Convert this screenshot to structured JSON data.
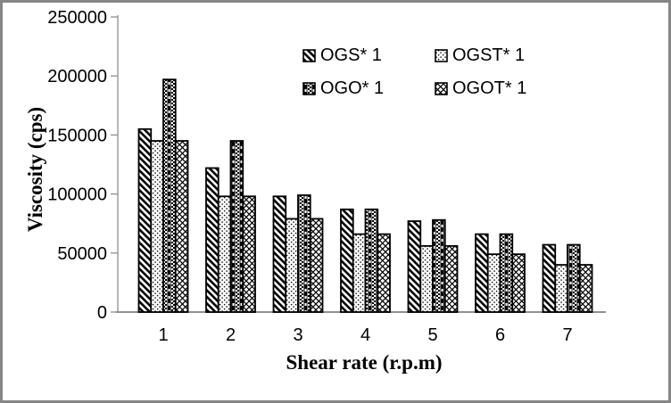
{
  "frame": {
    "background_color": "#ffffff",
    "border_color": "#868686"
  },
  "chart_data": {
    "type": "bar",
    "title": "",
    "xlabel": "Shear rate (r.p.m)",
    "ylabel": "Viscosity (cps)",
    "categories": [
      "1",
      "2",
      "3",
      "4",
      "5",
      "6",
      "7"
    ],
    "series": [
      {
        "name": "OGS* 1",
        "pattern": "diagonal-stripes-icon",
        "values": [
          155000,
          122000,
          98000,
          87000,
          77000,
          66000,
          57000
        ]
      },
      {
        "name": "OGST* 1",
        "pattern": "sparse-dots-icon",
        "values": [
          145000,
          98000,
          79000,
          66000,
          56000,
          49000,
          40000
        ]
      },
      {
        "name": "OGO* 1",
        "pattern": "checker-ladder-icon",
        "values": [
          197000,
          145000,
          99000,
          87000,
          78000,
          66000,
          57000
        ]
      },
      {
        "name": "OGOT* 1",
        "pattern": "diamond-crosshatch-icon",
        "values": [
          145000,
          98000,
          79000,
          66000,
          56000,
          49000,
          40000
        ]
      }
    ],
    "ylim": [
      0,
      250000
    ],
    "y_ticks": [
      0,
      50000,
      100000,
      150000,
      200000,
      250000
    ],
    "grid": false,
    "legend_position": "upper-center, two columns, two rows",
    "bar_outline_color": "#000000",
    "bar_fill_background": "#ffffff",
    "axis_color": "#909090",
    "text_color": "#000000"
  }
}
